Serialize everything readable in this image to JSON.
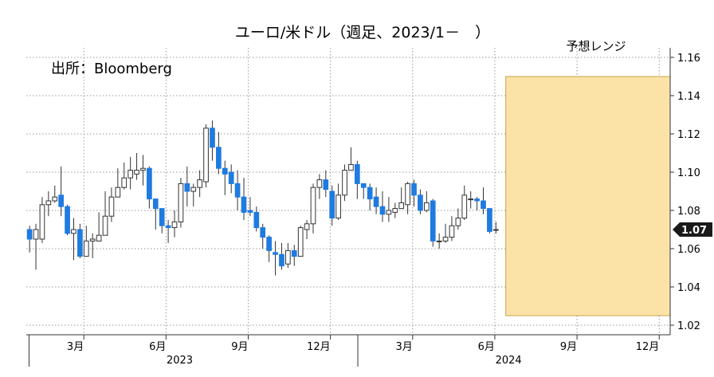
{
  "chart_data": {
    "type": "candlestick",
    "title": "ユーロ/米ドル（週足、2023/1－　）",
    "source": "出所：Bloomberg",
    "range_label": "予想レンジ",
    "last_price_label": "1.07",
    "ylim": [
      1.015,
      1.165
    ],
    "y_ticks": [
      "1.02",
      "1.04",
      "1.06",
      "1.08",
      "1.10",
      "1.12",
      "1.14",
      "1.16"
    ],
    "x_tick_labels": [
      "3月",
      "6月",
      "9月",
      "12月",
      "3月",
      "6月",
      "9月",
      "12月"
    ],
    "x_tick_months": [
      2,
      5,
      8,
      11,
      14,
      17,
      20,
      23
    ],
    "x_range_months": [
      -0.1,
      23.4
    ],
    "year_labels": [
      {
        "label": "2023",
        "month": 5.5
      },
      {
        "label": "2024",
        "month": 17.5
      }
    ],
    "forecast": {
      "x_start_month": 17.4,
      "x_end_month": 23.4,
      "low": 1.025,
      "high": 1.15
    },
    "colors": {
      "up": "#ffffff",
      "down": "#1e7be0",
      "outline": "#333333",
      "band": "#fbe3a8",
      "band_border": "#c8a348",
      "label_bg": "#1a1a1a"
    },
    "candles": [
      [
        1.07,
        1.065,
        1.072,
        1.058
      ],
      [
        1.065,
        1.07,
        1.073,
        1.049
      ],
      [
        1.065,
        1.083,
        1.087,
        1.063
      ],
      [
        1.083,
        1.085,
        1.09,
        1.077
      ],
      [
        1.085,
        1.087,
        1.093,
        1.084
      ],
      [
        1.088,
        1.082,
        1.103,
        1.077
      ],
      [
        1.082,
        1.068,
        1.083,
        1.067
      ],
      [
        1.068,
        1.07,
        1.076,
        1.054
      ],
      [
        1.07,
        1.056,
        1.073,
        1.055
      ],
      [
        1.056,
        1.064,
        1.072,
        1.058
      ],
      [
        1.064,
        1.065,
        1.068,
        1.055
      ],
      [
        1.064,
        1.067,
        1.079,
        1.066
      ],
      [
        1.067,
        1.077,
        1.09,
        1.069
      ],
      [
        1.077,
        1.087,
        1.092,
        1.074
      ],
      [
        1.087,
        1.092,
        1.102,
        1.087
      ],
      [
        1.092,
        1.097,
        1.105,
        1.091
      ],
      [
        1.097,
        1.101,
        1.108,
        1.091
      ],
      [
        1.099,
        1.101,
        1.11,
        1.096
      ],
      [
        1.101,
        1.102,
        1.109,
        1.093
      ],
      [
        1.102,
        1.086,
        1.103,
        1.081
      ],
      [
        1.086,
        1.081,
        1.086,
        1.07
      ],
      [
        1.081,
        1.072,
        1.081,
        1.068
      ],
      [
        1.072,
        1.071,
        1.075,
        1.063
      ],
      [
        1.071,
        1.074,
        1.08,
        1.066
      ],
      [
        1.074,
        1.094,
        1.097,
        1.071
      ],
      [
        1.094,
        1.09,
        1.103,
        1.082
      ],
      [
        1.09,
        1.092,
        1.094,
        1.082
      ],
      [
        1.092,
        1.096,
        1.101,
        1.087
      ],
      [
        1.095,
        1.123,
        1.125,
        1.092
      ],
      [
        1.123,
        1.113,
        1.127,
        1.106
      ],
      [
        1.113,
        1.102,
        1.121,
        1.099
      ],
      [
        1.102,
        1.099,
        1.106,
        1.088
      ],
      [
        1.1,
        1.094,
        1.104,
        1.089
      ],
      [
        1.094,
        1.087,
        1.101,
        1.08
      ],
      [
        1.087,
        1.079,
        1.097,
        1.075
      ],
      [
        1.08,
        1.079,
        1.087,
        1.077
      ],
      [
        1.079,
        1.071,
        1.082,
        1.069
      ],
      [
        1.071,
        1.066,
        1.073,
        1.06
      ],
      [
        1.066,
        1.059,
        1.067,
        1.053
      ],
      [
        1.058,
        1.057,
        1.064,
        1.046
      ],
      [
        1.057,
        1.051,
        1.063,
        1.049
      ],
      [
        1.052,
        1.059,
        1.063,
        1.05
      ],
      [
        1.059,
        1.056,
        1.062,
        1.051
      ],
      [
        1.056,
        1.071,
        1.072,
        1.056
      ],
      [
        1.07,
        1.073,
        1.075,
        1.065
      ],
      [
        1.073,
        1.092,
        1.094,
        1.068
      ],
      [
        1.092,
        1.096,
        1.099,
        1.086
      ],
      [
        1.096,
        1.091,
        1.101,
        1.087
      ],
      [
        1.09,
        1.076,
        1.093,
        1.072
      ],
      [
        1.076,
        1.088,
        1.094,
        1.075
      ],
      [
        1.088,
        1.101,
        1.104,
        1.085
      ],
      [
        1.101,
        1.104,
        1.113,
        1.102
      ],
      [
        1.104,
        1.094,
        1.106,
        1.086
      ],
      [
        1.094,
        1.092,
        1.094,
        1.086
      ],
      [
        1.092,
        1.086,
        1.094,
        1.08
      ],
      [
        1.087,
        1.082,
        1.092,
        1.078
      ],
      [
        1.082,
        1.078,
        1.09,
        1.074
      ],
      [
        1.078,
        1.08,
        1.087,
        1.074
      ],
      [
        1.079,
        1.081,
        1.084,
        1.076
      ],
      [
        1.081,
        1.084,
        1.092,
        1.083
      ],
      [
        1.083,
        1.094,
        1.095,
        1.078
      ],
      [
        1.094,
        1.088,
        1.096,
        1.082
      ],
      [
        1.088,
        1.08,
        1.091,
        1.078
      ],
      [
        1.08,
        1.084,
        1.09,
        1.079
      ],
      [
        1.085,
        1.064,
        1.086,
        1.061
      ],
      [
        1.064,
        1.064,
        1.068,
        1.06
      ],
      [
        1.064,
        1.066,
        1.073,
        1.063
      ],
      [
        1.066,
        1.072,
        1.077,
        1.064
      ],
      [
        1.072,
        1.076,
        1.081,
        1.07
      ],
      [
        1.076,
        1.088,
        1.093,
        1.075
      ],
      [
        1.086,
        1.086,
        1.09,
        1.081
      ],
      [
        1.086,
        1.085,
        1.087,
        1.08
      ],
      [
        1.085,
        1.081,
        1.092,
        1.078
      ],
      [
        1.081,
        1.069,
        1.081,
        1.068
      ],
      [
        1.07,
        1.07,
        1.074,
        1.068
      ]
    ]
  }
}
